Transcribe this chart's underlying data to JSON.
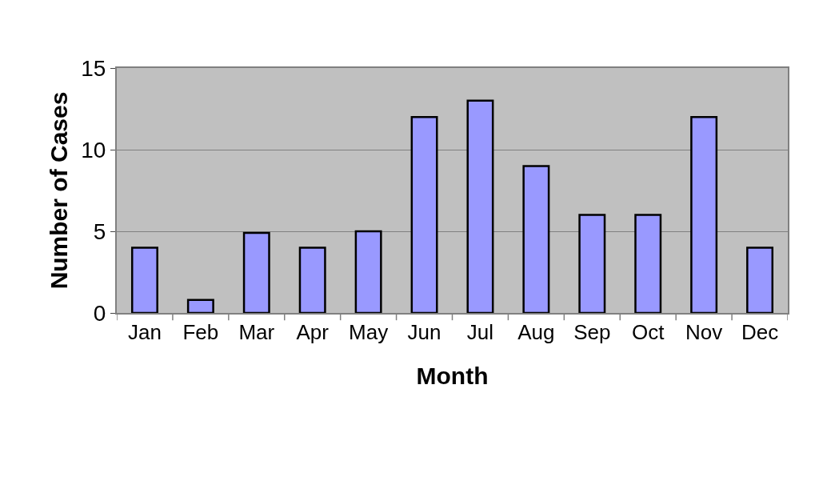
{
  "chart_data": {
    "type": "bar",
    "xlabel": "Month",
    "ylabel": "Number of Cases",
    "categories": [
      "Jan",
      "Feb",
      "Mar",
      "Apr",
      "May",
      "Jun",
      "Jul",
      "Aug",
      "Sep",
      "Oct",
      "Nov",
      "Dec"
    ],
    "values": [
      4,
      0.8,
      4.9,
      4,
      5,
      12,
      13,
      9,
      6,
      6,
      12,
      4
    ],
    "color": "#9999ff",
    "ylim": [
      0,
      15
    ],
    "yticks": [
      0,
      5,
      10,
      15
    ],
    "grid": "y",
    "legend": false
  }
}
